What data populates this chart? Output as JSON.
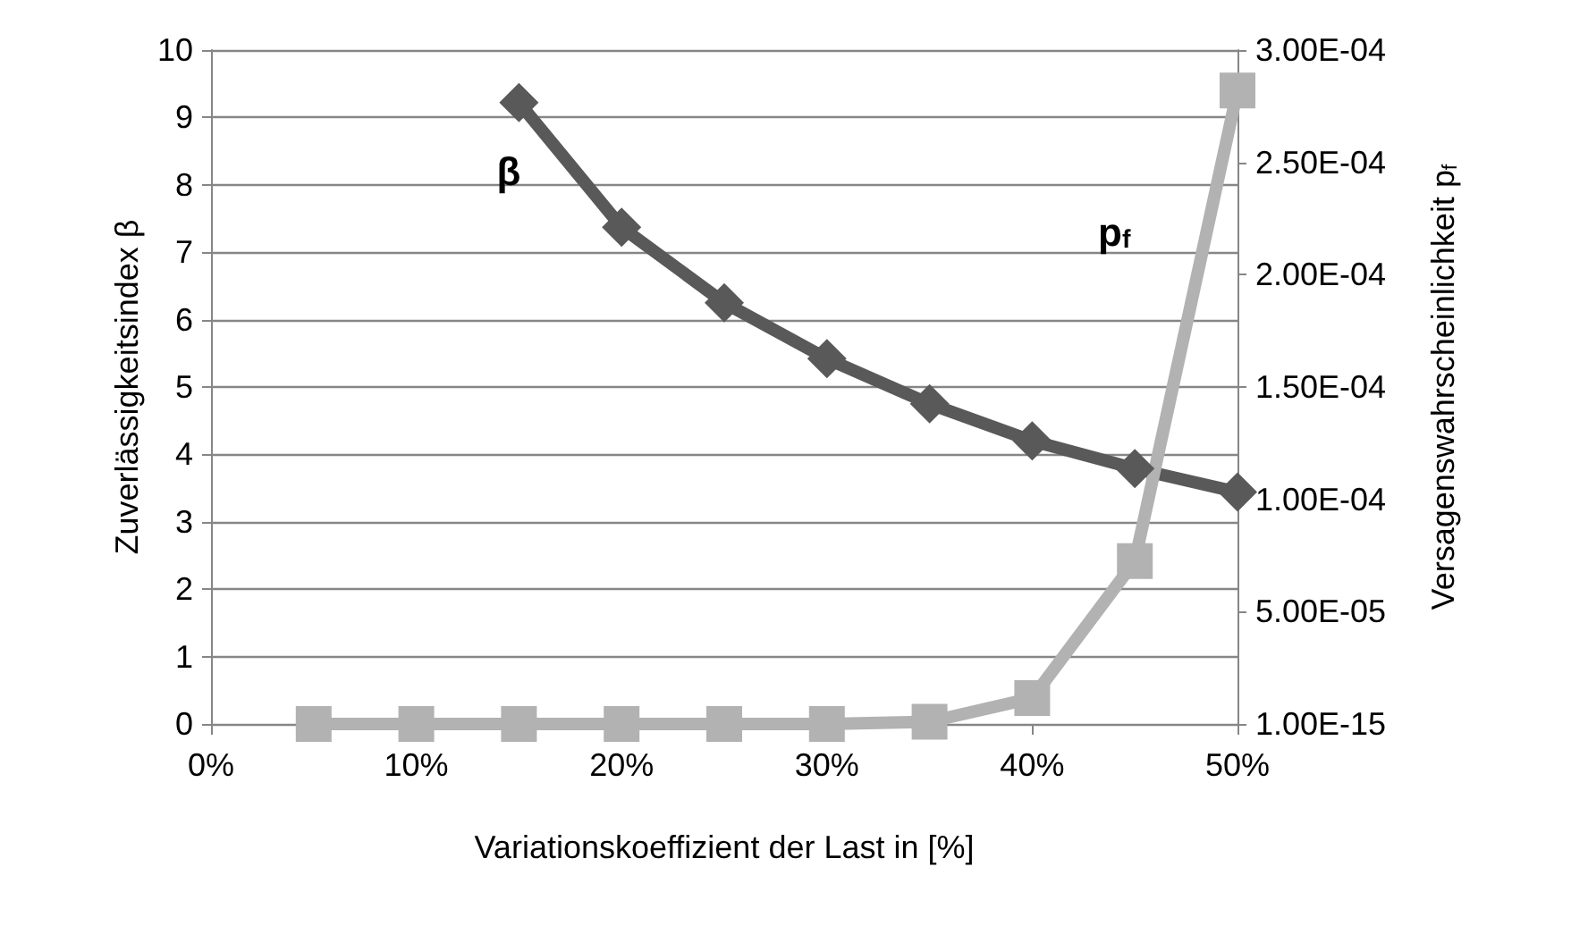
{
  "chart_data": {
    "type": "line",
    "xlabel": "Variationskoeffizient der Last in [%]",
    "ylabel": "Zuverlässigkeitsindex β",
    "y2label": "Versagenswahrscheinlichkeit p$_{f}$",
    "x": [
      5,
      10,
      15,
      20,
      25,
      30,
      35,
      40,
      45,
      50
    ],
    "series": [
      {
        "color": "#595959",
        "marker": "diamond",
        "values": [
          null,
          null,
          9.22,
          7.37,
          6.25,
          5.42,
          4.75,
          4.2,
          3.79,
          3.44
        ]
      },
      {
        "color": "#b2b2b2",
        "marker": "square",
        "axis": "y2",
        "values": [
          1e-15,
          1e-15,
          1e-15,
          1e-15,
          1e-15,
          1e-15,
          1e-06,
          1.15e-05,
          7.25e-05,
          0.000282
        ]
      }
    ],
    "xlim": [
      0,
      50
    ],
    "xticks": [
      {
        "value": 0,
        "label": "0%"
      },
      {
        "value": 10,
        "label": "10%"
      },
      {
        "value": 20,
        "label": "20%"
      },
      {
        "value": 30,
        "label": "30%"
      },
      {
        "value": 40,
        "label": "40%"
      },
      {
        "value": 50,
        "label": "50%"
      }
    ],
    "ylim": [
      0,
      10
    ],
    "yticks": [
      0,
      1,
      2,
      3,
      4,
      5,
      6,
      7,
      8,
      9,
      10
    ],
    "y2lim": [
      1e-15,
      0.0003
    ],
    "y2ticks": [
      {
        "value": 1e-15,
        "label": "1.00E-15"
      },
      {
        "value": 5e-05,
        "label": "5.00E-05"
      },
      {
        "value": 0.0001,
        "label": "1.00E-04"
      },
      {
        "value": 0.00015,
        "label": "1.50E-04"
      },
      {
        "value": 0.0002,
        "label": "2.00E-04"
      },
      {
        "value": 0.00025,
        "label": "2.50E-04"
      },
      {
        "value": 0.0003,
        "label": "3.00E-04"
      }
    ],
    "annotations": [
      "β",
      "p$_{f}$"
    ],
    "grid": "y"
  }
}
